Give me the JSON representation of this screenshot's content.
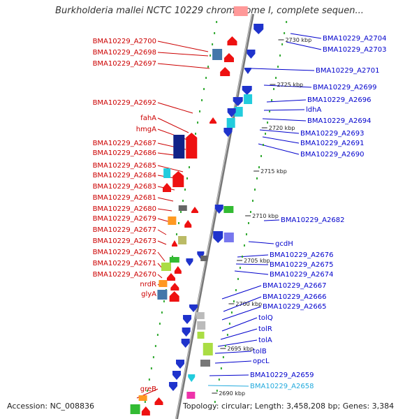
{
  "title": "Burkholderia mallei NCTC 10229 chromosome I, complete sequen...",
  "footer": {
    "accession": "Accession: NC_008836",
    "topology": "Topology: circular; Length: 3,458,208 bp; Genes: 3,384"
  },
  "colors": {
    "reverse_label": "#cc0000",
    "forward_label": "#0000cc",
    "highlight_label": "#22aadd",
    "backbone": "#999999",
    "tick": "#33aa33"
  },
  "scale_labels": [
    {
      "text": "2730 kbp"
    },
    {
      "text": "2725 kbp"
    },
    {
      "text": "2720 kbp"
    },
    {
      "text": "2715 kbp"
    },
    {
      "text": "2710 kbp"
    },
    {
      "text": "2705 kbp"
    },
    {
      "text": "2700 kbp"
    },
    {
      "text": "2695 kbp"
    },
    {
      "text": "2690 kbp"
    }
  ],
  "left_genes": [
    {
      "label": "BMA10229_A2700"
    },
    {
      "label": "BMA10229_A2698"
    },
    {
      "label": "BMA10229_A2697"
    },
    {
      "label": "BMA10229_A2692"
    },
    {
      "label": "fahA"
    },
    {
      "label": "hmgA"
    },
    {
      "label": "BMA10229_A2687"
    },
    {
      "label": "BMA10229_A2686"
    },
    {
      "label": "BMA10229_A2685"
    },
    {
      "label": "BMA10229_A2684"
    },
    {
      "label": "BMA10229_A2683"
    },
    {
      "label": "BMA10229_A2681"
    },
    {
      "label": "BMA10229_A2680"
    },
    {
      "label": "BMA10229_A2679"
    },
    {
      "label": "BMA10229_A2677"
    },
    {
      "label": "BMA10229_A2673"
    },
    {
      "label": "BMA10229_A2672"
    },
    {
      "label": "BMA10229_A2671"
    },
    {
      "label": "BMA10229_A2670"
    },
    {
      "label": "nrdR"
    },
    {
      "label": "glyA"
    },
    {
      "label": "greB"
    }
  ],
  "right_genes": [
    {
      "label": "BMA10229_A2704"
    },
    {
      "label": "BMA10229_A2703"
    },
    {
      "label": "BMA10229_A2701"
    },
    {
      "label": "BMA10229_A2699"
    },
    {
      "label": "BMA10229_A2696"
    },
    {
      "label": "ldhA"
    },
    {
      "label": "BMA10229_A2694"
    },
    {
      "label": "BMA10229_A2693"
    },
    {
      "label": "BMA10229_A2691"
    },
    {
      "label": "BMA10229_A2690"
    },
    {
      "label": "BMA10229_A2682"
    },
    {
      "label": "gcdH"
    },
    {
      "label": "BMA10229_A2676"
    },
    {
      "label": "BMA10229_A2675"
    },
    {
      "label": "BMA10229_A2674"
    },
    {
      "label": "BMA10229_A2667"
    },
    {
      "label": "BMA10229_A2666"
    },
    {
      "label": "BMA10229_A2665"
    },
    {
      "label": "tolQ"
    },
    {
      "label": "tolR"
    },
    {
      "label": "tolA"
    },
    {
      "label": "tolB"
    },
    {
      "label": "opcL"
    },
    {
      "label": "BMA10229_A2659"
    },
    {
      "label": "BMA10229_A2658",
      "highlight": true
    }
  ]
}
